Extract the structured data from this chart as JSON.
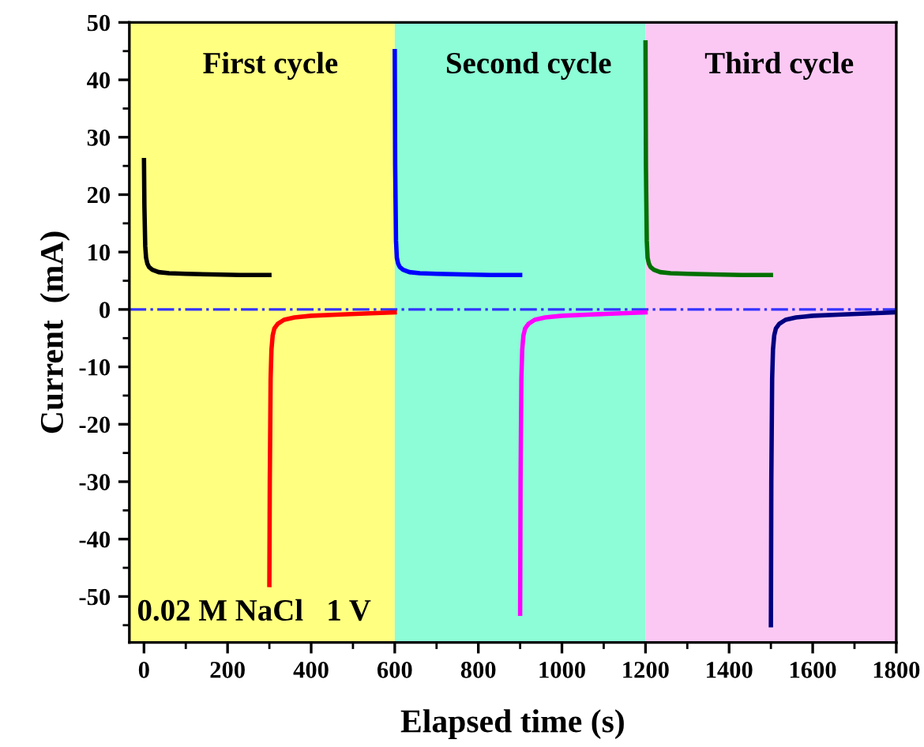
{
  "chart_data": {
    "type": "line",
    "xlabel": "Elapsed time (s)",
    "ylabel": "Current  (mA)",
    "xlim": [
      -35,
      1800
    ],
    "ylim": [
      -58,
      50
    ],
    "xticks": [
      0,
      {
        "value": 100,
        "label": null
      },
      200,
      {
        "value": 300,
        "label": null
      },
      400,
      {
        "value": 500,
        "label": null
      },
      600,
      {
        "value": 700,
        "label": null
      },
      800,
      {
        "value": 900,
        "label": null
      },
      1000,
      {
        "value": 1100,
        "label": null
      },
      1200,
      {
        "value": 1300,
        "label": null
      },
      1400,
      {
        "value": 1500,
        "label": null
      },
      1600,
      {
        "value": 1700,
        "label": null
      },
      1800
    ],
    "yticks": [
      {
        "value": -55,
        "label": null
      },
      -50,
      {
        "value": -45,
        "label": null
      },
      -40,
      {
        "value": -35,
        "label": null
      },
      -30,
      {
        "value": -25,
        "label": null
      },
      -20,
      {
        "value": -15,
        "label": null
      },
      -10,
      {
        "value": -5,
        "label": null
      },
      0,
      {
        "value": 5,
        "label": null
      },
      10,
      {
        "value": 15,
        "label": null
      },
      20,
      {
        "value": 25,
        "label": null
      },
      30,
      {
        "value": 35,
        "label": null
      },
      40,
      {
        "value": 45,
        "label": null
      },
      50
    ],
    "grid": false,
    "legend": false,
    "series": [
      {
        "color": "#000000",
        "x": [
          0,
          1,
          3,
          5,
          8,
          12,
          20,
          35,
          60,
          100,
          160,
          230,
          300
        ],
        "values": [
          26,
          18,
          11,
          9,
          8,
          7.4,
          6.9,
          6.5,
          6.3,
          6.2,
          6.1,
          6.0,
          6.0
        ]
      },
      {
        "color": "#ff0000",
        "x": [
          300,
          301,
          303,
          305,
          308,
          312,
          320,
          335,
          360,
          400,
          460,
          530,
          600
        ],
        "values": [
          -48,
          -30,
          -12,
          -7,
          -4.5,
          -3.3,
          -2.5,
          -1.8,
          -1.4,
          -1.1,
          -0.9,
          -0.7,
          -0.5
        ]
      },
      {
        "color": "#0000ff",
        "x": [
          600,
          601,
          603,
          605,
          608,
          612,
          620,
          635,
          660,
          700,
          760,
          830,
          900
        ],
        "values": [
          45,
          25,
          12,
          9,
          8,
          7.4,
          6.9,
          6.5,
          6.3,
          6.2,
          6.1,
          6.0,
          6.0
        ]
      },
      {
        "color": "#ff00ff",
        "x": [
          900,
          901,
          903,
          905,
          908,
          912,
          920,
          935,
          960,
          1000,
          1060,
          1130,
          1200
        ],
        "values": [
          -53,
          -30,
          -12,
          -7,
          -4.5,
          -3.3,
          -2.5,
          -1.8,
          -1.4,
          -1.1,
          -0.9,
          -0.7,
          -0.5
        ]
      },
      {
        "color": "#007000",
        "x": [
          1200,
          1201,
          1203,
          1205,
          1208,
          1212,
          1220,
          1235,
          1260,
          1300,
          1360,
          1430,
          1500
        ],
        "values": [
          46.5,
          25,
          12,
          9,
          8,
          7.4,
          6.9,
          6.5,
          6.3,
          6.2,
          6.1,
          6.0,
          6.0
        ]
      },
      {
        "color": "#000080",
        "x": [
          1500,
          1501,
          1503,
          1505,
          1508,
          1512,
          1520,
          1535,
          1560,
          1600,
          1660,
          1730,
          1800
        ],
        "values": [
          -55,
          -30,
          -12,
          -7,
          -4.5,
          -3.3,
          -2.5,
          -1.8,
          -1.4,
          -1.1,
          -0.9,
          -0.7,
          -0.5
        ]
      }
    ],
    "bands": [
      {
        "axis": "x",
        "from": -35,
        "to": 600,
        "label": "First cycle",
        "color": "#ffff80"
      },
      {
        "axis": "x",
        "from": 600,
        "to": 1200,
        "label": "Second cycle",
        "color": "#8cfdd6"
      },
      {
        "axis": "x",
        "from": 1200,
        "to": 1800,
        "label": "Third cycle",
        "color": "#fbc8f4"
      }
    ],
    "ref_lines": [
      {
        "axis": "y",
        "value": 0,
        "color": "#3333ff",
        "line_style": "dashdot"
      }
    ],
    "annotations": [
      "0.02 M NaCl   1 V"
    ]
  }
}
